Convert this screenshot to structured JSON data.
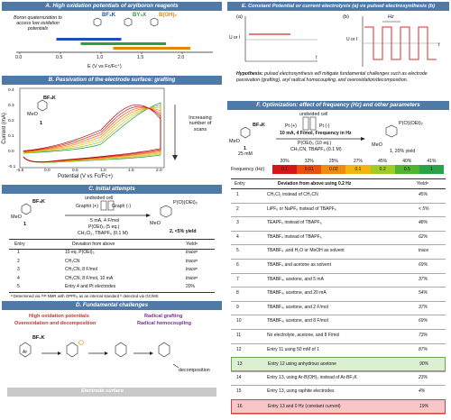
{
  "colors": {
    "header_blue": "#4f7aa8",
    "header_gray": "#666666",
    "red": "#d32f2f",
    "green": "#2e9e3a",
    "orange": "#e08a00",
    "blue": "#1f4fbf",
    "purple": "#7a2a9a",
    "highlight_green": "#dcefd2",
    "highlight_red": "#f7c7c7"
  },
  "panelA": {
    "title": "A. High oxidation potentials of arylboron reagents",
    "note": "Boron quaternization to access low oxidation potentials",
    "labels": [
      "BF₃K",
      "BY₃X",
      "B(OH)₂"
    ],
    "label_prefix": "Ar",
    "axis_ticks": [
      "0.0",
      "0.5",
      "1.0",
      "1.5",
      "2.0"
    ],
    "axis_label": "E (V vs Fc/Fc⁺)",
    "bars": [
      {
        "color": "#1f4fbf",
        "start": 0.45,
        "end": 1.25
      },
      {
        "color": "#2e9e3a",
        "start": 0.75,
        "end": 1.8
      },
      {
        "color": "#e08a00",
        "start": 1.15,
        "end": 2.1
      }
    ]
  },
  "panelB": {
    "title": "B. Passivation of the electrode surface: grafting",
    "ylabel": "Current (mA)",
    "xlabel": "Potential (V vs Fc/Fc+)",
    "yticks": [
      "0.4",
      "0.3",
      "0.2",
      "0.1",
      "0.0",
      "-0.1"
    ],
    "xticks": [
      "-0.5",
      "0.0",
      "0.5",
      "1.0",
      "1.5",
      "2.0"
    ],
    "compound_label": "BF₃K",
    "compound_number": "1",
    "methoxy": "MeO",
    "arrow_text": "Increasing number of scans"
  },
  "panelC": {
    "title": "C. Initial attempts",
    "cell": "undivided cell",
    "electrode_plus": "Graphit (+)",
    "electrode_minus": "Graph (-)",
    "conditions": [
      "5 mA, 4 F/mol",
      "P(OEt)₃ (5 eq.)",
      "CH₂Cl₂, TBAPF₆ (0.1 M)"
    ],
    "sm_label": "BF₃K",
    "sm_number": "1",
    "methoxy": "MeO",
    "product_group": "P(O)(OEt)₂",
    "product_label": "2, <5% yield",
    "table_headers": [
      "Entry",
      "Deviation from above",
      "Yieldᵃ"
    ],
    "rows": [
      [
        "1",
        "10 eq. P(OEt)₃",
        "traceᵇ"
      ],
      [
        "2",
        "CH₃CN",
        "traceᵇ"
      ],
      [
        "3",
        "CH₃CN, 8 F/mol",
        "traceᵇ"
      ],
      [
        "4",
        "CH₃CN, 8 F/mol, 10 mA",
        "traceᵇ"
      ],
      [
        "5",
        "Entry 4 and Pt electrodes",
        "20%"
      ]
    ],
    "footnote": "ᵃ Determined via ³¹P NMR with OPPh₃ as an internal standard ᵇ detected via GC/MS"
  },
  "panelD": {
    "title": "D. Fundamental challenges",
    "left_challenges": [
      "High oxidation potentials",
      "Overoxidation and decomposition"
    ],
    "right_challenges": [
      "Radical grafting",
      "Radical homocoupling"
    ],
    "sm_label": "BF₃K",
    "decomposition": "decomposition",
    "surface": "Electrode surface",
    "ar": "Ar"
  },
  "panelE": {
    "title": "E. Constant Potential or current electrolysis (a) vs pulsed electrosynthesis (b)",
    "label_a": "(a)",
    "label_b": "(b)",
    "axis_y": "U or I",
    "axis_t": "t",
    "hz": "Hz",
    "hypothesis_head": "Hypothesis:",
    "hypothesis_body": "pulsed electrosynthesis will mitigate fundamental challenges such as electrode passivation (grafting), aryl radical homocoupling, and overoxidation/decomposition."
  },
  "panelF": {
    "title": "F. Optimization: effect of frequency (Hz) and other parameters",
    "cell": "undivided cell",
    "pt_plus": "Pt (+)",
    "pt_minus": "Pt (-)",
    "conditions_bold": "10 mA, 4 F/mol, Frequency in Hz",
    "conditions": [
      "P(OEt)₃ (10 eq.)",
      "CH₃CN, TBAPF₆ (0.1 M)"
    ],
    "sm_label": "BF₃K",
    "methoxy": "MeO",
    "sm_number": "1",
    "sm_amount": "25 mM",
    "product_group": "P(O)(OEt)₂",
    "product_label": "1, 20% yield",
    "freq_label": "Frequency (Hz)",
    "freq_yields": [
      "20%",
      "32%",
      "25%",
      "27%",
      "45%",
      "40%",
      "41%"
    ],
    "freq_values": [
      "0.1",
      "0.01",
      "0.02",
      "0.1",
      "0.2",
      "0.5",
      "1"
    ],
    "freq_colors": [
      "#d51616",
      "#e84e10",
      "#f08a10",
      "#f2b510",
      "#9fcc26",
      "#4fb52e",
      "#2aa24a"
    ],
    "table_headers": [
      "Entry",
      "Deviation from above using 0.2 Hz",
      "Yieldᵃ"
    ],
    "rows": [
      [
        "1",
        "CH₂Cl₂ instead of CH₃CN",
        "45%"
      ],
      [
        "2",
        "LiPF₆ or NaPF₆ instead of TBAPF₆",
        "< 5%"
      ],
      [
        "3",
        "TEAPF₆  instead of TBAPF₆",
        "48%"
      ],
      [
        "4",
        "TBABF₄ instead of TBAPF₆",
        "62%"
      ],
      [
        "5",
        "TBABF₄ ,and H₂O or MeOH as solvent",
        "trace"
      ],
      [
        "6",
        "TBABF₄ and acetone as solvent",
        "69%"
      ],
      [
        "7",
        "TBABF₄, acetone, and 5 mA",
        "37%"
      ],
      [
        "8",
        "TBABF₄, acetone, and 20 mA",
        "54%"
      ],
      [
        "9",
        "TBABF₄, acetone, and 2 F/mol",
        "37%"
      ],
      [
        "10",
        "TBABF₄, acetone, and 8 F/mol",
        "69%"
      ],
      [
        "11",
        "No electrolyte, acetone, and 8 F/mol",
        "73%"
      ],
      [
        "12",
        "Entry 11 using 50 mM of 1",
        "87%"
      ],
      [
        "13",
        "Entry 12 using anhydrous acetone",
        "90%"
      ],
      [
        "14",
        "Entry 13, using Ar-B(OH)₂ instead of Ar-BF₃K",
        "23%"
      ],
      [
        "15",
        "Entry 13, using raphite electrodes",
        "4%"
      ],
      [
        "16",
        "Entry 13 and 0 Hz (constant current)",
        "19%"
      ]
    ]
  }
}
